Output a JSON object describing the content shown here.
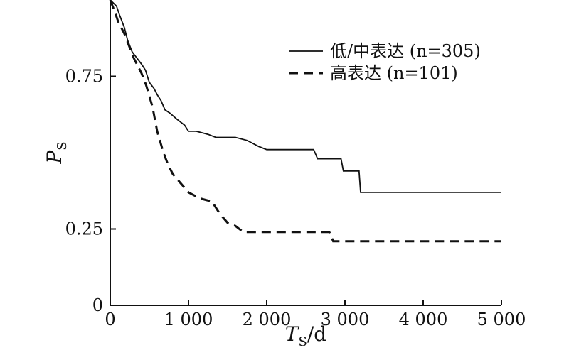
{
  "chart_data": {
    "type": "line",
    "title": "",
    "xlabel": "T",
    "xlabel_sub": "S",
    "xlabel_unit": "/d",
    "ylabel": "P",
    "ylabel_sub": "S",
    "xlim": [
      0,
      5000
    ],
    "ylim": [
      0,
      1.0
    ],
    "x_ticks": [
      0,
      1000,
      2000,
      3000,
      4000,
      5000
    ],
    "x_tick_labels": [
      "0",
      "1 000",
      "2 000",
      "3 000",
      "4 000",
      "5 000"
    ],
    "y_ticks": [
      0,
      0.25,
      0.75
    ],
    "y_tick_labels": [
      "0",
      "0.25",
      "0.75"
    ],
    "grid": false,
    "legend_position": "top-right",
    "series": [
      {
        "name": "低/中表达 (n=305)",
        "style": "solid",
        "points": [
          [
            0,
            1.0
          ],
          [
            40,
            0.99
          ],
          [
            80,
            0.98
          ],
          [
            120,
            0.95
          ],
          [
            180,
            0.91
          ],
          [
            220,
            0.87
          ],
          [
            280,
            0.83
          ],
          [
            340,
            0.81
          ],
          [
            400,
            0.79
          ],
          [
            450,
            0.77
          ],
          [
            500,
            0.73
          ],
          [
            560,
            0.71
          ],
          [
            600,
            0.69
          ],
          [
            650,
            0.67
          ],
          [
            700,
            0.64
          ],
          [
            760,
            0.63
          ],
          [
            850,
            0.61
          ],
          [
            950,
            0.59
          ],
          [
            1000,
            0.57
          ],
          [
            1100,
            0.57
          ],
          [
            1250,
            0.56
          ],
          [
            1350,
            0.55
          ],
          [
            1600,
            0.55
          ],
          [
            1750,
            0.54
          ],
          [
            1900,
            0.52
          ],
          [
            2000,
            0.51
          ],
          [
            2600,
            0.51
          ],
          [
            2650,
            0.48
          ],
          [
            2950,
            0.48
          ],
          [
            2980,
            0.44
          ],
          [
            3000,
            0.44
          ],
          [
            3180,
            0.44
          ],
          [
            3200,
            0.37
          ],
          [
            5000,
            0.37
          ]
        ]
      },
      {
        "name": "高表达 (n=101)",
        "style": "dashed",
        "points": [
          [
            0,
            1.0
          ],
          [
            60,
            0.96
          ],
          [
            100,
            0.93
          ],
          [
            180,
            0.89
          ],
          [
            240,
            0.85
          ],
          [
            300,
            0.81
          ],
          [
            400,
            0.76
          ],
          [
            460,
            0.72
          ],
          [
            540,
            0.65
          ],
          [
            600,
            0.57
          ],
          [
            680,
            0.5
          ],
          [
            740,
            0.46
          ],
          [
            800,
            0.43
          ],
          [
            900,
            0.4
          ],
          [
            1000,
            0.37
          ],
          [
            1150,
            0.35
          ],
          [
            1300,
            0.34
          ],
          [
            1400,
            0.3
          ],
          [
            1500,
            0.27
          ],
          [
            1600,
            0.26
          ],
          [
            1700,
            0.24
          ],
          [
            2800,
            0.24
          ],
          [
            2850,
            0.21
          ],
          [
            5000,
            0.21
          ]
        ]
      }
    ]
  }
}
